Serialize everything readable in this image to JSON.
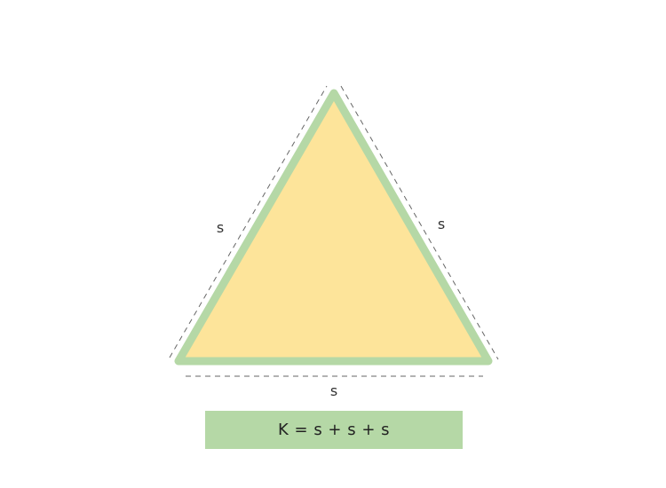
{
  "diagram": {
    "labels": {
      "left": "s",
      "right": "s",
      "bottom": "s"
    },
    "formula": "K = s + s + s"
  },
  "colors": {
    "triangle_fill": "#fde49a",
    "triangle_border": "#b5d8a6",
    "dashed_line": "#666666",
    "formula_box": "#b5d8a6",
    "text": "#333333"
  }
}
